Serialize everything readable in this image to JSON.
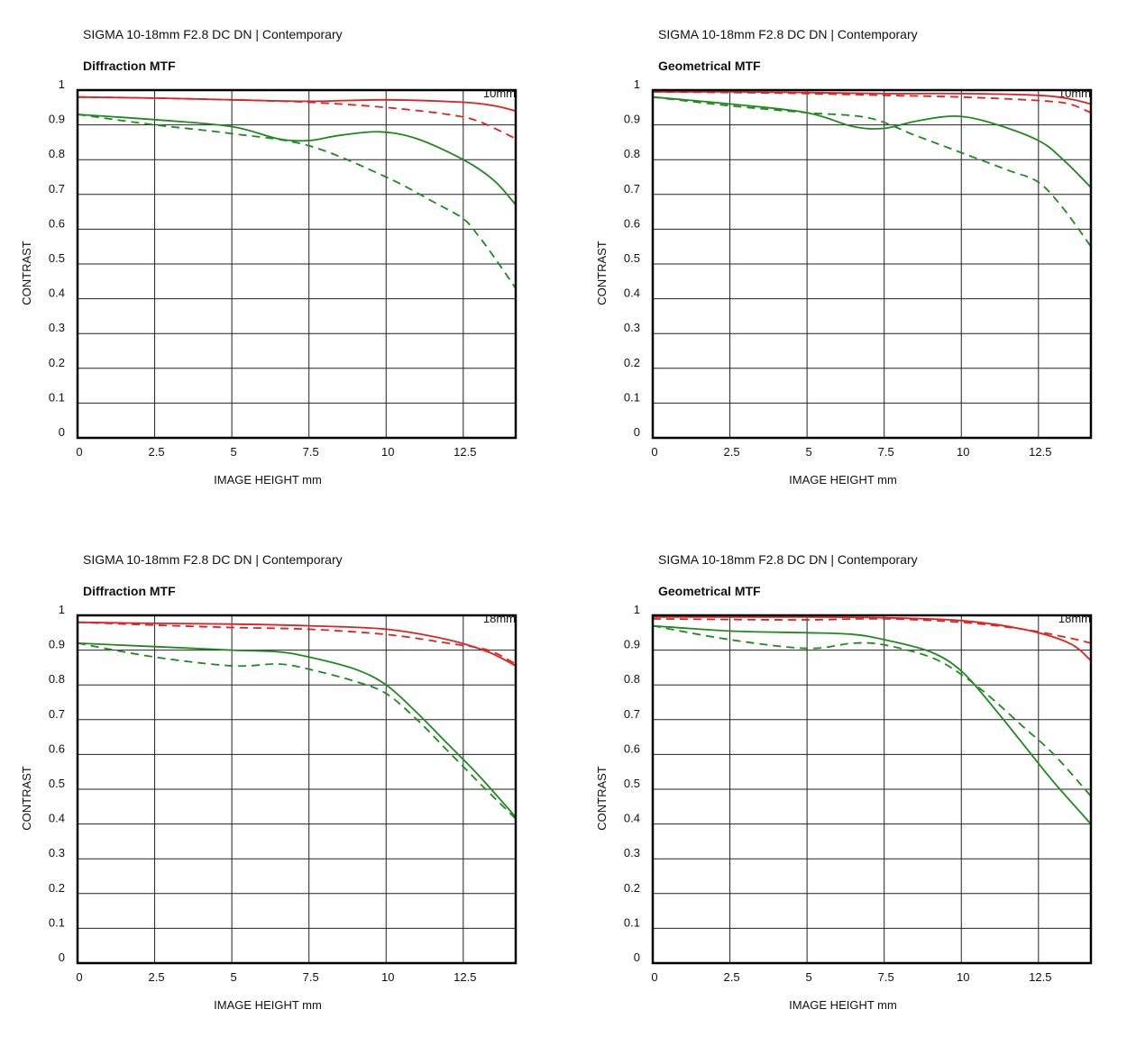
{
  "chart_data": [
    {
      "type": "line",
      "title": "SIGMA 10-18mm F2.8 DC DN | Contemporary",
      "subtitle": "Diffraction MTF",
      "focal_length": "10mm",
      "xlabel": "IMAGE HEIGHT   mm",
      "ylabel": "CONTRAST",
      "xlim": [
        0,
        14.2
      ],
      "ylim": [
        0,
        1
      ],
      "x_ticks": [
        "0",
        "2.5",
        "5",
        "7.5",
        "10",
        "12.5"
      ],
      "y_ticks": [
        "0",
        "0.1",
        "0.2",
        "0.3",
        "0.4",
        "0.5",
        "0.6",
        "0.7",
        "0.8",
        "0.9",
        "1"
      ],
      "grid": true,
      "series": [
        {
          "color": "#dd2222",
          "dash": "solid",
          "x": [
            0,
            2.5,
            5,
            7.5,
            10,
            12.5,
            13.5,
            14.2
          ],
          "y": [
            0.98,
            0.977,
            0.972,
            0.968,
            0.972,
            0.965,
            0.955,
            0.94
          ]
        },
        {
          "color": "#dd2222",
          "dash": "dashed",
          "x": [
            0,
            2.5,
            5,
            7.5,
            10,
            12,
            13,
            14.2
          ],
          "y": [
            0.98,
            0.977,
            0.972,
            0.965,
            0.95,
            0.93,
            0.91,
            0.86
          ]
        },
        {
          "color": "#1e8a1e",
          "dash": "solid",
          "x": [
            0,
            2.5,
            5,
            6.5,
            7.5,
            8.5,
            9.8,
            11,
            12.5,
            13.5,
            14.2
          ],
          "y": [
            0.93,
            0.915,
            0.895,
            0.86,
            0.855,
            0.87,
            0.88,
            0.86,
            0.8,
            0.74,
            0.67
          ]
        },
        {
          "color": "#1e8a1e",
          "dash": "dashed",
          "x": [
            0,
            2.5,
            5,
            7.5,
            10,
            11.5,
            12.5,
            13,
            13.5,
            14.2
          ],
          "y": [
            0.93,
            0.9,
            0.875,
            0.84,
            0.75,
            0.68,
            0.63,
            0.58,
            0.52,
            0.43
          ]
        }
      ]
    },
    {
      "type": "line",
      "title": "SIGMA 10-18mm F2.8 DC DN | Contemporary",
      "subtitle": "Geometrical MTF",
      "focal_length": "10mm",
      "xlabel": "IMAGE HEIGHT   mm",
      "ylabel": "CONTRAST",
      "xlim": [
        0,
        14.2
      ],
      "ylim": [
        0,
        1
      ],
      "x_ticks": [
        "0",
        "2.5",
        "5",
        "7.5",
        "10",
        "12.5"
      ],
      "y_ticks": [
        "0",
        "0.1",
        "0.2",
        "0.3",
        "0.4",
        "0.5",
        "0.6",
        "0.7",
        "0.8",
        "0.9",
        "1"
      ],
      "grid": true,
      "series": [
        {
          "color": "#dd2222",
          "dash": "solid",
          "x": [
            0,
            2.5,
            5,
            7.5,
            10,
            12.5,
            13.5,
            14.2
          ],
          "y": [
            0.995,
            0.995,
            0.993,
            0.99,
            0.99,
            0.985,
            0.975,
            0.96
          ]
        },
        {
          "color": "#dd2222",
          "dash": "dashed",
          "x": [
            0,
            2.5,
            5,
            7.5,
            10,
            12.5,
            13.5,
            14.2
          ],
          "y": [
            0.995,
            0.993,
            0.99,
            0.985,
            0.98,
            0.97,
            0.96,
            0.935
          ]
        },
        {
          "color": "#1e8a1e",
          "dash": "solid",
          "x": [
            0,
            2.5,
            5,
            6.5,
            7.5,
            8.5,
            9.8,
            11,
            12.5,
            13.3,
            14.2
          ],
          "y": [
            0.98,
            0.96,
            0.935,
            0.895,
            0.89,
            0.91,
            0.925,
            0.905,
            0.855,
            0.8,
            0.72
          ]
        },
        {
          "color": "#1e8a1e",
          "dash": "dashed",
          "x": [
            0,
            2.5,
            5,
            7,
            8.5,
            10,
            11.5,
            12.5,
            13.3,
            14.2
          ],
          "y": [
            0.98,
            0.955,
            0.935,
            0.92,
            0.87,
            0.82,
            0.77,
            0.735,
            0.66,
            0.55
          ]
        }
      ]
    },
    {
      "type": "line",
      "title": "SIGMA 10-18mm F2.8 DC DN | Contemporary",
      "subtitle": "Diffraction MTF",
      "focal_length": "18mm",
      "xlabel": "IMAGE HEIGHT   mm",
      "ylabel": "CONTRAST",
      "xlim": [
        0,
        14.2
      ],
      "ylim": [
        0,
        1
      ],
      "x_ticks": [
        "0",
        "2.5",
        "5",
        "7.5",
        "10",
        "12.5"
      ],
      "y_ticks": [
        "0",
        "0.1",
        "0.2",
        "0.3",
        "0.4",
        "0.5",
        "0.6",
        "0.7",
        "0.8",
        "0.9",
        "1"
      ],
      "grid": true,
      "series": [
        {
          "color": "#dd2222",
          "dash": "solid",
          "x": [
            0,
            2.5,
            5,
            7.5,
            10,
            12,
            13.3,
            14.2
          ],
          "y": [
            0.98,
            0.977,
            0.975,
            0.97,
            0.96,
            0.93,
            0.895,
            0.855
          ]
        },
        {
          "color": "#dd2222",
          "dash": "dashed",
          "x": [
            0,
            2.5,
            5,
            7.5,
            10,
            12,
            13.3,
            14.2
          ],
          "y": [
            0.98,
            0.972,
            0.965,
            0.96,
            0.945,
            0.92,
            0.9,
            0.86
          ]
        },
        {
          "color": "#1e8a1e",
          "dash": "solid",
          "x": [
            0,
            2.5,
            5,
            6.5,
            7.5,
            9,
            10,
            11,
            12,
            13,
            14.2
          ],
          "y": [
            0.92,
            0.91,
            0.9,
            0.895,
            0.88,
            0.845,
            0.8,
            0.72,
            0.63,
            0.54,
            0.42
          ]
        },
        {
          "color": "#1e8a1e",
          "dash": "dashed",
          "x": [
            0,
            2.5,
            5,
            6.5,
            7.5,
            9,
            10,
            11,
            12,
            13,
            14.2
          ],
          "y": [
            0.92,
            0.88,
            0.855,
            0.86,
            0.845,
            0.81,
            0.775,
            0.7,
            0.61,
            0.52,
            0.415
          ]
        }
      ]
    },
    {
      "type": "line",
      "title": "SIGMA 10-18mm F2.8 DC DN | Contemporary",
      "subtitle": "Geometrical MTF",
      "focal_length": "18mm",
      "xlabel": "IMAGE HEIGHT   mm",
      "ylabel": "CONTRAST",
      "xlim": [
        0,
        14.2
      ],
      "ylim": [
        0,
        1
      ],
      "x_ticks": [
        "0",
        "2.5",
        "5",
        "7.5",
        "10",
        "12.5"
      ],
      "y_ticks": [
        "0",
        "0.1",
        "0.2",
        "0.3",
        "0.4",
        "0.5",
        "0.6",
        "0.7",
        "0.8",
        "0.9",
        "1"
      ],
      "grid": true,
      "series": [
        {
          "color": "#dd2222",
          "dash": "solid",
          "x": [
            0,
            2.5,
            5,
            7.5,
            10,
            12,
            13.5,
            14.2
          ],
          "y": [
            0.995,
            0.995,
            0.995,
            0.993,
            0.985,
            0.96,
            0.92,
            0.87
          ]
        },
        {
          "color": "#dd2222",
          "dash": "dashed",
          "x": [
            0,
            2.5,
            5,
            7.5,
            10,
            12,
            13.5,
            14.2
          ],
          "y": [
            0.99,
            0.988,
            0.987,
            0.99,
            0.98,
            0.96,
            0.935,
            0.92
          ]
        },
        {
          "color": "#1e8a1e",
          "dash": "solid",
          "x": [
            0,
            2.5,
            5,
            6.5,
            7.5,
            9,
            10,
            11,
            12,
            13,
            14.2
          ],
          "y": [
            0.97,
            0.955,
            0.95,
            0.945,
            0.93,
            0.895,
            0.84,
            0.74,
            0.63,
            0.52,
            0.4
          ]
        },
        {
          "color": "#1e8a1e",
          "dash": "dashed",
          "x": [
            0,
            2.5,
            5,
            6.5,
            7.5,
            9,
            10,
            11,
            12,
            13,
            14.2
          ],
          "y": [
            0.97,
            0.93,
            0.905,
            0.92,
            0.915,
            0.88,
            0.83,
            0.76,
            0.68,
            0.6,
            0.48
          ]
        }
      ]
    }
  ]
}
